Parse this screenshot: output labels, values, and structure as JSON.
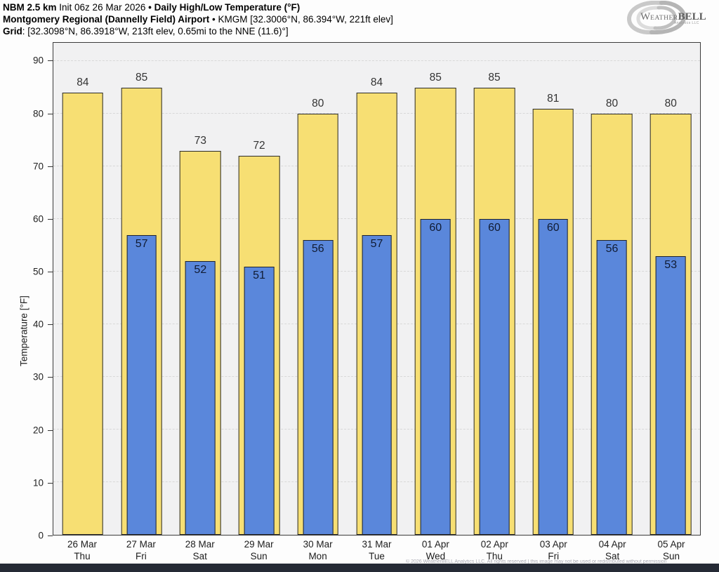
{
  "header": {
    "line1": {
      "model": "NBM 2.5 km",
      "init": " Init 06z 26 Mar 2026 ",
      "bullet": "• ",
      "product": "Daily High/Low Temperature (°F)"
    },
    "line2": {
      "station": "Montgomery Regional (Dannelly Field) Airport",
      "bullet": " • ",
      "meta": "KMGM [32.3006°N, 86.394°W, 221ft elev]"
    },
    "line3": {
      "label": "Grid",
      "value": ": [32.3098°N, 86.3918°W, 213ft elev, 0.65mi to the NNE (11.6)°]"
    }
  },
  "logo": {
    "initial": "W",
    "small_caps": "EATHER",
    "bold": "BELL",
    "subtext": "Analytics LLC"
  },
  "footer": {
    "copyright": "© 2026 WeatherBELL Analytics LLC. All rights reserved | this image may not be used or redistributed without permission"
  },
  "chart_data": {
    "type": "bar",
    "title": "Daily High/Low Temperature (°F)",
    "ylabel": "Temperature [°F]",
    "ylim": [
      0,
      93.5
    ],
    "yticks": [
      0,
      10,
      20,
      30,
      40,
      50,
      60,
      70,
      80,
      90
    ],
    "grid": "dashed horizontal",
    "legend_position": "none",
    "categories": [
      {
        "date": "26 Mar",
        "day": "Thu"
      },
      {
        "date": "27 Mar",
        "day": "Fri"
      },
      {
        "date": "28 Mar",
        "day": "Sat"
      },
      {
        "date": "29 Mar",
        "day": "Sun"
      },
      {
        "date": "30 Mar",
        "day": "Mon"
      },
      {
        "date": "31 Mar",
        "day": "Tue"
      },
      {
        "date": "01 Apr",
        "day": "Wed"
      },
      {
        "date": "02 Apr",
        "day": "Thu"
      },
      {
        "date": "03 Apr",
        "day": "Fri"
      },
      {
        "date": "04 Apr",
        "day": "Sat"
      },
      {
        "date": "05 Apr",
        "day": "Sun"
      }
    ],
    "series": [
      {
        "name": "High",
        "color": "#F7DF73",
        "values": [
          84,
          85,
          73,
          72,
          80,
          84,
          85,
          85,
          81,
          80,
          80
        ]
      },
      {
        "name": "Low",
        "color": "#5A87DB",
        "values": [
          null,
          57,
          52,
          51,
          56,
          57,
          60,
          60,
          60,
          56,
          53
        ]
      }
    ]
  }
}
